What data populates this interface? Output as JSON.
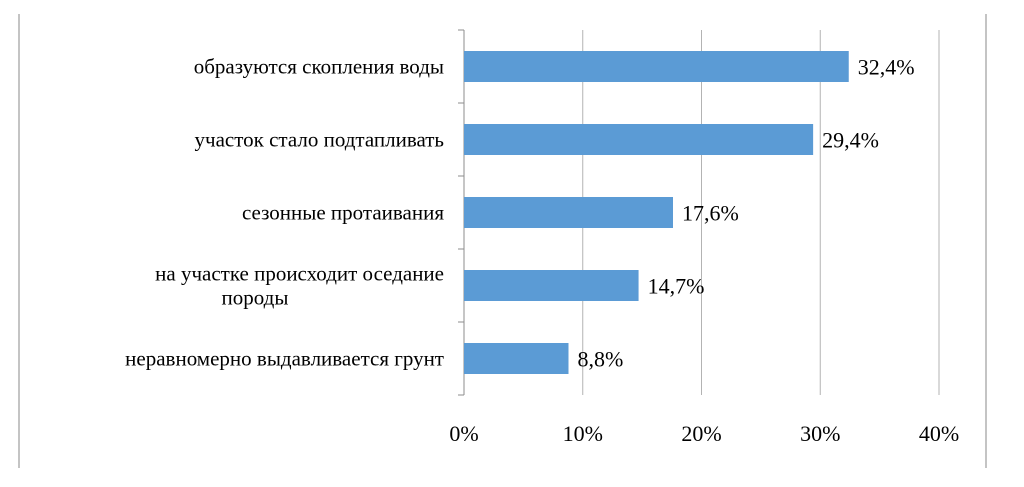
{
  "chart_data": {
    "type": "bar",
    "orientation": "horizontal",
    "categories": [
      [
        "образуются скопления воды"
      ],
      [
        "участок стало подтапливать"
      ],
      [
        "сезонные протаивания"
      ],
      [
        "на участке происходит оседание",
        "породы"
      ],
      [
        "неравномерно выдавливается грунт"
      ]
    ],
    "values": [
      32.4,
      29.4,
      17.6,
      14.7,
      8.8
    ],
    "data_labels": [
      "32,4%",
      "29,4%",
      "17,6%",
      "14,7%",
      "8,8%"
    ],
    "x_ticks": [
      "0%",
      "10%",
      "20%",
      "30%",
      "40%"
    ],
    "xlim": [
      0,
      40
    ],
    "grid": true,
    "legend": "none",
    "bar_color": "#5b9bd5",
    "grid_color": "#b3b3b3"
  }
}
